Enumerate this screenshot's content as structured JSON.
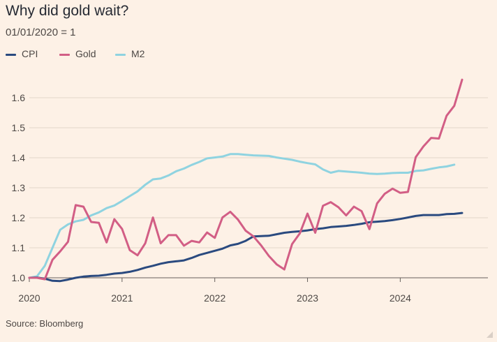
{
  "title": "Why did gold wait?",
  "subtitle": "01/01/2020 = 1",
  "source": "Source: Bloomberg",
  "legend": [
    {
      "name": "CPI",
      "color": "#2a4a7f"
    },
    {
      "name": "Gold",
      "color": "#d25e85"
    },
    {
      "name": "M2",
      "color": "#8fd3e0"
    }
  ],
  "chart_data": {
    "type": "line",
    "title": "Why did gold wait?",
    "subtitle": "01/01/2020 = 1",
    "xlabel": "",
    "ylabel": "",
    "x_ticks": [
      "2020",
      "2021",
      "2022",
      "2023",
      "2024"
    ],
    "y_ticks": [
      1.0,
      1.1,
      1.2,
      1.3,
      1.4,
      1.5,
      1.6
    ],
    "xlim": [
      2020.0,
      2024.67
    ],
    "ylim": [
      0.98,
      1.68
    ],
    "grid": "horizontal",
    "series": [
      {
        "name": "CPI",
        "color": "#2a4a7f",
        "x": [
          2020.0,
          2020.083,
          2020.167,
          2020.25,
          2020.333,
          2020.417,
          2020.5,
          2020.583,
          2020.667,
          2020.75,
          2020.833,
          2020.917,
          2021.0,
          2021.083,
          2021.167,
          2021.25,
          2021.333,
          2021.417,
          2021.5,
          2021.583,
          2021.667,
          2021.75,
          2021.833,
          2021.917,
          2022.0,
          2022.083,
          2022.167,
          2022.25,
          2022.333,
          2022.417,
          2022.5,
          2022.583,
          2022.667,
          2022.75,
          2022.833,
          2022.917,
          2023.0,
          2023.083,
          2023.167,
          2023.25,
          2023.333,
          2023.417,
          2023.5,
          2023.583,
          2023.667,
          2023.75,
          2023.833,
          2023.917,
          2024.0,
          2024.083,
          2024.167,
          2024.25,
          2024.333,
          2024.417,
          2024.5,
          2024.583,
          2024.667
        ],
        "values": [
          1.0,
          1.001,
          0.997,
          0.99,
          0.989,
          0.994,
          1.0,
          1.004,
          1.006,
          1.007,
          1.01,
          1.014,
          1.016,
          1.02,
          1.026,
          1.034,
          1.04,
          1.047,
          1.052,
          1.055,
          1.058,
          1.066,
          1.076,
          1.083,
          1.09,
          1.097,
          1.108,
          1.113,
          1.123,
          1.138,
          1.139,
          1.14,
          1.145,
          1.15,
          1.153,
          1.155,
          1.158,
          1.162,
          1.165,
          1.169,
          1.171,
          1.173,
          1.176,
          1.18,
          1.185,
          1.187,
          1.189,
          1.192,
          1.196,
          1.201,
          1.206,
          1.209,
          1.209,
          1.209,
          1.212,
          1.213,
          1.216
        ]
      },
      {
        "name": "Gold",
        "color": "#d25e85",
        "x": [
          2020.0,
          2020.083,
          2020.167,
          2020.25,
          2020.333,
          2020.417,
          2020.5,
          2020.583,
          2020.667,
          2020.75,
          2020.833,
          2020.917,
          2021.0,
          2021.083,
          2021.167,
          2021.25,
          2021.333,
          2021.417,
          2021.5,
          2021.583,
          2021.667,
          2021.75,
          2021.833,
          2021.917,
          2022.0,
          2022.083,
          2022.167,
          2022.25,
          2022.333,
          2022.417,
          2022.5,
          2022.583,
          2022.667,
          2022.75,
          2022.833,
          2022.917,
          2023.0,
          2023.083,
          2023.167,
          2023.25,
          2023.333,
          2023.417,
          2023.5,
          2023.583,
          2023.667,
          2023.75,
          2023.833,
          2023.917,
          2024.0,
          2024.083,
          2024.167,
          2024.25,
          2024.333,
          2024.417,
          2024.5,
          2024.583,
          2024.667
        ],
        "values": [
          1.0,
          1.0,
          0.995,
          1.06,
          1.088,
          1.12,
          1.242,
          1.237,
          1.186,
          1.183,
          1.118,
          1.195,
          1.163,
          1.092,
          1.075,
          1.115,
          1.201,
          1.115,
          1.142,
          1.142,
          1.107,
          1.123,
          1.118,
          1.151,
          1.133,
          1.201,
          1.22,
          1.194,
          1.157,
          1.138,
          1.108,
          1.073,
          1.045,
          1.028,
          1.112,
          1.148,
          1.214,
          1.15,
          1.24,
          1.252,
          1.235,
          1.208,
          1.237,
          1.222,
          1.162,
          1.248,
          1.28,
          1.297,
          1.283,
          1.286,
          1.402,
          1.438,
          1.466,
          1.464,
          1.54,
          1.573,
          1.66
        ]
      },
      {
        "name": "M2",
        "color": "#8fd3e0",
        "x": [
          2020.0,
          2020.083,
          2020.167,
          2020.25,
          2020.333,
          2020.417,
          2020.5,
          2020.583,
          2020.667,
          2020.75,
          2020.833,
          2020.917,
          2021.0,
          2021.083,
          2021.167,
          2021.25,
          2021.333,
          2021.417,
          2021.5,
          2021.583,
          2021.667,
          2021.75,
          2021.833,
          2021.917,
          2022.0,
          2022.083,
          2022.167,
          2022.25,
          2022.333,
          2022.417,
          2022.5,
          2022.583,
          2022.667,
          2022.75,
          2022.833,
          2022.917,
          2023.0,
          2023.083,
          2023.167,
          2023.25,
          2023.333,
          2023.417,
          2023.5,
          2023.583,
          2023.667,
          2023.75,
          2023.833,
          2023.917,
          2024.0,
          2024.083,
          2024.167,
          2024.25,
          2024.333,
          2024.417,
          2024.5,
          2024.583
        ],
        "values": [
          1.0,
          1.005,
          1.04,
          1.1,
          1.16,
          1.178,
          1.188,
          1.193,
          1.208,
          1.218,
          1.232,
          1.241,
          1.256,
          1.272,
          1.288,
          1.31,
          1.328,
          1.331,
          1.341,
          1.355,
          1.364,
          1.376,
          1.386,
          1.398,
          1.401,
          1.404,
          1.412,
          1.412,
          1.41,
          1.408,
          1.407,
          1.406,
          1.401,
          1.397,
          1.393,
          1.387,
          1.382,
          1.378,
          1.361,
          1.35,
          1.356,
          1.354,
          1.352,
          1.35,
          1.347,
          1.346,
          1.347,
          1.349,
          1.35,
          1.35,
          1.356,
          1.358,
          1.363,
          1.368,
          1.371,
          1.377
        ]
      }
    ]
  }
}
